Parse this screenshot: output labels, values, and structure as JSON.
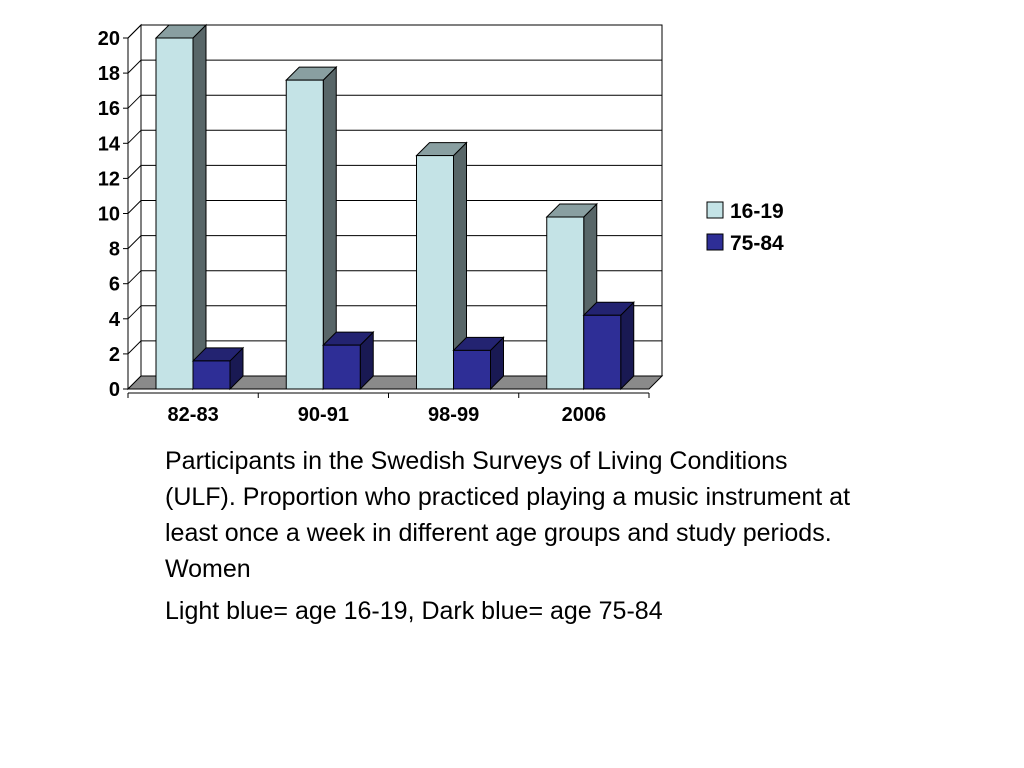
{
  "chart_data": {
    "type": "bar",
    "categories": [
      "82-83",
      "90-91",
      "98-99",
      "2006"
    ],
    "series": [
      {
        "name": "16-19",
        "values": [
          20,
          17.6,
          13.3,
          9.8
        ],
        "color": "#c4e3e6"
      },
      {
        "name": "75-84",
        "values": [
          1.6,
          2.5,
          2.2,
          4.2
        ],
        "color": "#2e2e96"
      }
    ],
    "ylim": [
      0,
      20
    ],
    "yticks": [
      0,
      2,
      4,
      6,
      8,
      10,
      12,
      14,
      16,
      18,
      20
    ],
    "grid": true,
    "legend_position": "right",
    "title": "",
    "xlabel": "",
    "ylabel": ""
  },
  "caption": {
    "main": "Participants in the Swedish Surveys of Living Conditions (ULF). Proportion who practiced playing a music instrument at least once a week in different age groups and study periods.  Women",
    "note": "Light blue= age 16-19, Dark blue= age 75-84"
  }
}
